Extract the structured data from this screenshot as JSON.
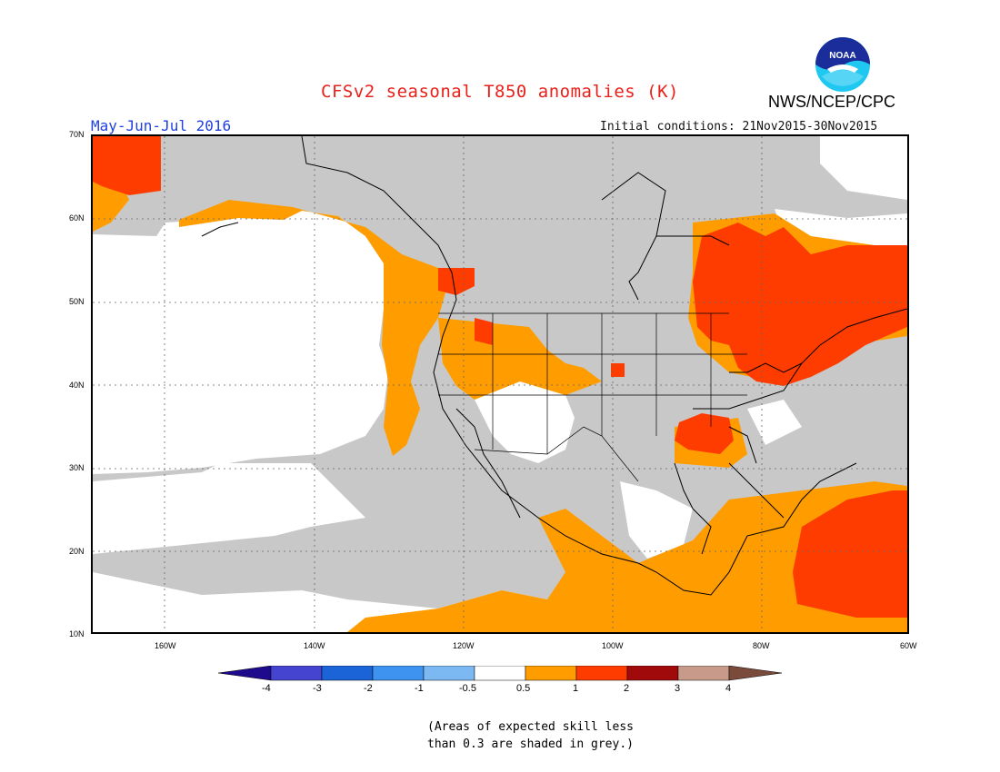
{
  "header": {
    "title": "CFSv2 seasonal T850 anomalies (K)",
    "season": "May-Jun-Jul 2016",
    "initial_conditions": "Initial conditions: 21Nov2015-30Nov2015",
    "agency": "NWS/NCEP/CPC",
    "logo_text": "NOAA"
  },
  "map": {
    "lat_labels": [
      "70N",
      "60N",
      "50N",
      "40N",
      "30N",
      "20N",
      "10N"
    ],
    "lon_labels": [
      "160W",
      "140W",
      "120W",
      "100W",
      "80W",
      "60W"
    ],
    "region": "North America and adjacent oceans",
    "grid": "dotted",
    "skill_mask_color": "#c8c8c8"
  },
  "legend": {
    "labels": [
      "-4",
      "-3",
      "-2",
      "-1",
      "-0.5",
      "0.5",
      "1",
      "2",
      "3",
      "4"
    ],
    "colors": [
      "#1e0a8c",
      "#4444d0",
      "#1a64d8",
      "#3e93f0",
      "#7cb8f2",
      "#ffffff",
      "#ff9c00",
      "#ff3c00",
      "#a00a0a",
      "#c89a8a",
      "#7a4a3a"
    ]
  },
  "note": {
    "line1": "(Areas of expected skill less",
    "line2": "than 0.3 are shaded in grey.)"
  }
}
